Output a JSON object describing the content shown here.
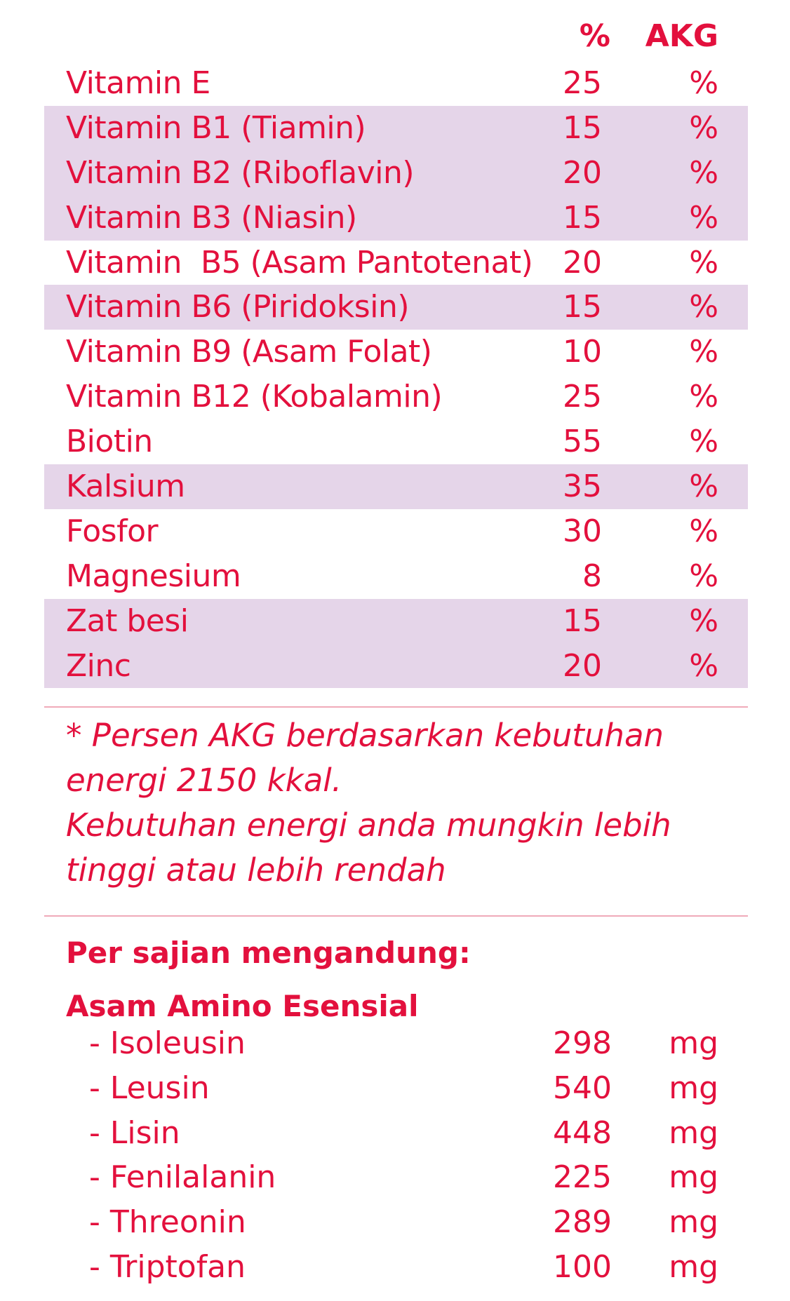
{
  "header": {
    "pct_label": "%",
    "akg_label": "AKG"
  },
  "nutrients": [
    {
      "name": "Vitamin E",
      "value": "25",
      "unit": "%",
      "shaded": false
    },
    {
      "name": "Vitamin B1 (Tiamin)",
      "value": "15",
      "unit": "%",
      "shaded": true
    },
    {
      "name": "Vitamin B2 (Riboflavin)",
      "value": "20",
      "unit": "%",
      "shaded": true
    },
    {
      "name": "Vitamin B3 (Niasin)",
      "value": "15",
      "unit": "%",
      "shaded": true
    },
    {
      "name": "Vitamin  B5 (Asam Pantotenat)",
      "value": "20",
      "unit": "%",
      "shaded": false
    },
    {
      "name": "Vitamin B6 (Piridoksin)",
      "value": "15",
      "unit": "%",
      "shaded": true
    },
    {
      "name": "Vitamin B9 (Asam Folat)",
      "value": "10",
      "unit": "%",
      "shaded": false
    },
    {
      "name": "Vitamin B12 (Kobalamin)",
      "value": "25",
      "unit": "%",
      "shaded": false
    },
    {
      "name": "Biotin",
      "value": "55",
      "unit": "%",
      "shaded": false
    },
    {
      "name": "Kalsium",
      "value": "35",
      "unit": "%",
      "shaded": true
    },
    {
      "name": "Fosfor",
      "value": "30",
      "unit": "%",
      "shaded": false
    },
    {
      "name": "Magnesium",
      "value": "8",
      "unit": "%",
      "shaded": false
    },
    {
      "name": "Zat besi",
      "value": "15",
      "unit": "%",
      "shaded": true
    },
    {
      "name": "Zinc",
      "value": "20",
      "unit": "%",
      "shaded": true
    }
  ],
  "footnote": "* Persen AKG berdasarkan kebutuhan\nenergi 2150 kkal.\nKebutuhan energi anda mungkin lebih\ntinggi atau lebih rendah",
  "per_serving_title": "Per sajian mengandung:",
  "amino_title": "Asam Amino Esensial",
  "amino_acids": [
    {
      "name": "- Isoleusin",
      "value": "298",
      "unit": "mg"
    },
    {
      "name": "- Leusin",
      "value": "540",
      "unit": "mg"
    },
    {
      "name": "- Lisin",
      "value": "448",
      "unit": "mg"
    },
    {
      "name": "- Fenilalanin",
      "value": "225",
      "unit": "mg"
    },
    {
      "name": "- Threonin",
      "value": "289",
      "unit": "mg"
    },
    {
      "name": "- Triptofan",
      "value": "100",
      "unit": "mg"
    }
  ],
  "colors": {
    "text": "#e3103d",
    "shade": "#e5d5e9",
    "divider": "#f0aab9"
  }
}
